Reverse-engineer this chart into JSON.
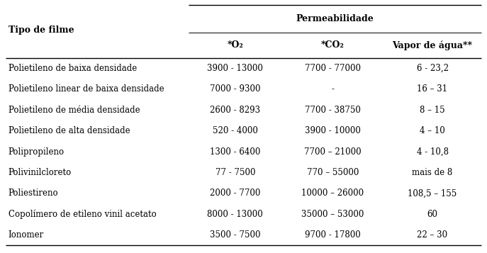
{
  "title": "Permeabilidade",
  "col_header_main": "Tipo de filme",
  "col_headers": [
    "*O₂",
    "*CO₂",
    "Vapor de água**"
  ],
  "rows": [
    [
      "Polietileno de baixa densidade",
      "3900 - 13000",
      "7700 - 77000",
      "6 - 23,2"
    ],
    [
      "Polietileno linear de baixa densidade",
      "7000 - 9300",
      "-",
      "16 – 31"
    ],
    [
      "Polietileno de média densidade",
      "2600 - 8293",
      "7700 - 38750",
      "8 – 15"
    ],
    [
      "Polietileno de alta densidade",
      "520 - 4000",
      "3900 - 10000",
      "4 – 10"
    ],
    [
      "Polipropileno",
      "1300 - 6400",
      "7700 – 21000",
      "4 - 10,8"
    ],
    [
      "Polivinilcloreto",
      "77 - 7500",
      "770 – 55000",
      "mais de 8"
    ],
    [
      "Poliestireno",
      "2000 - 7700",
      "10000 – 26000",
      "108,5 – 155"
    ],
    [
      "Copolímero de etileno vinil acetato",
      "8000 - 13000",
      "35000 – 53000",
      "60"
    ],
    [
      "Ionomer",
      "3500 - 7500",
      "9700 - 17800",
      "22 – 30"
    ]
  ],
  "bg_color": "#ffffff",
  "text_color": "#000000",
  "line_color": "#000000",
  "font_size": 8.5,
  "header_font_size": 9.0,
  "figsize": [
    6.87,
    3.57
  ],
  "dpi": 100
}
